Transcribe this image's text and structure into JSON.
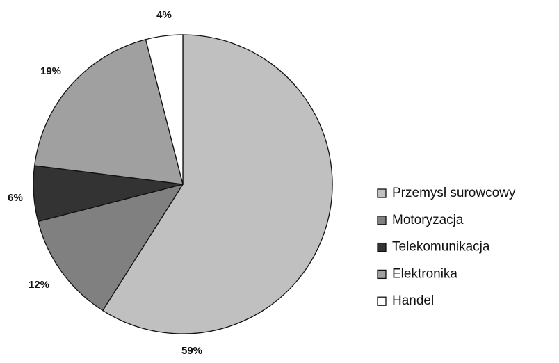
{
  "chart_data": {
    "type": "pie",
    "categories": [
      "Przemysł surowcowy",
      "Motoryzacja",
      "Telekomunikacja",
      "Elektronika",
      "Handel"
    ],
    "values": [
      59,
      12,
      6,
      19,
      4
    ],
    "value_labels": [
      "59%",
      "12%",
      "6%",
      "19%",
      "4%"
    ],
    "colors": [
      "#c0c0c0",
      "#808080",
      "#333333",
      "#a0a0a0",
      "#ffffff"
    ]
  }
}
